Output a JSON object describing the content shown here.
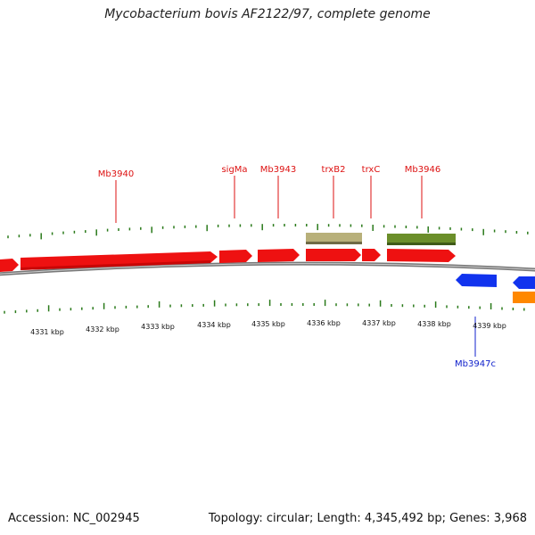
{
  "title": "Mycobacterium bovis AF2122/97, complete genome",
  "footer": {
    "accession": "Accession: NC_002945",
    "stats": "Topology: circular; Length: 4,345,492 bp; Genes: 3,968"
  },
  "colors": {
    "cds_forward": "#ee1111",
    "cds_reverse": "#1133ee",
    "rna": "#ff8800",
    "trxB2_feature": "#b8b07a",
    "mb3946_feature": "#6b8e2a",
    "tick": "#2a7a1a",
    "backbone": "#777777",
    "label_forward": "#dd1111",
    "label_reverse": "#1122cc"
  },
  "gene_labels": [
    {
      "name": "Mb3940",
      "strand": "forward"
    },
    {
      "name": "sigMa",
      "strand": "forward"
    },
    {
      "name": "Mb3943",
      "strand": "forward"
    },
    {
      "name": "trxB2",
      "strand": "forward"
    },
    {
      "name": "trxC",
      "strand": "forward"
    },
    {
      "name": "Mb3946",
      "strand": "forward"
    },
    {
      "name": "Mb3947c",
      "strand": "reverse"
    }
  ],
  "kbp_labels": [
    "4331 kbp",
    "4332 kbp",
    "4333 kbp",
    "4334 kbp",
    "4335 kbp",
    "4336 kbp",
    "4337 kbp",
    "4338 kbp",
    "4339 kbp"
  ]
}
